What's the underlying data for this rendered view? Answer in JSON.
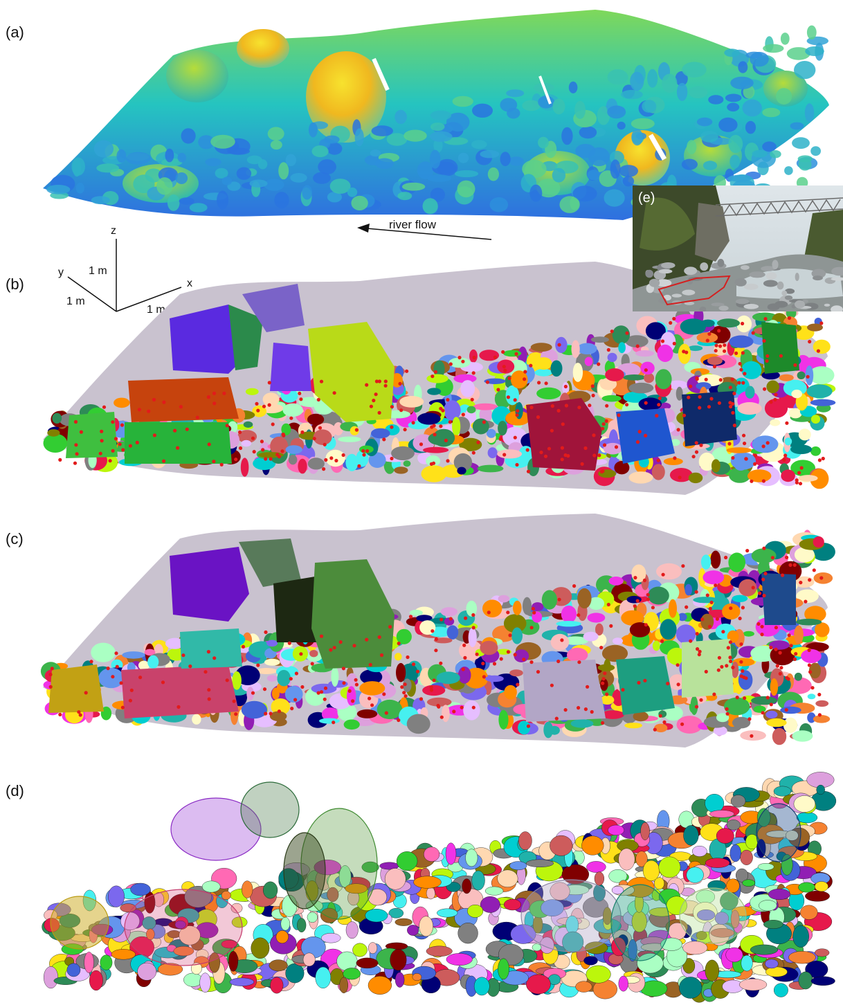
{
  "figure": {
    "panels": [
      {
        "label": "(a)"
      },
      {
        "label": "(b)"
      },
      {
        "label": "(c)"
      },
      {
        "label": "(d)"
      }
    ],
    "inset": {
      "label": "(e)"
    },
    "axes": {
      "z": "z",
      "y": "y",
      "x": "x",
      "z_scale": "1 m",
      "y_scale": "1 m",
      "x_scale": "1 m"
    },
    "flow_label": "river flow"
  },
  "colors": {
    "height_low": "#2f6fe0",
    "height_mid": "#25c4c0",
    "height_high": "#f7e22e",
    "inset_outline": "#d42020",
    "seed_points": "#e21b1b"
  }
}
